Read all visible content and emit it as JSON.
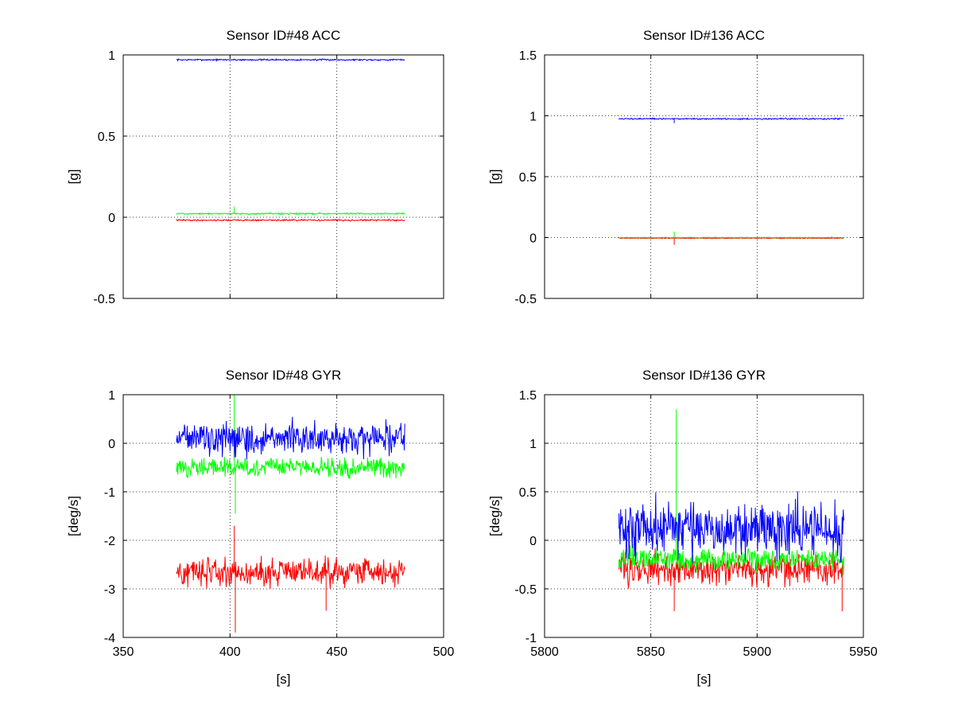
{
  "chart_data": [
    {
      "type": "line",
      "title": "Sensor ID#48 ACC",
      "xlabel": "",
      "ylabel": "[g]",
      "xlim": [
        350,
        500
      ],
      "ylim": [
        -0.5,
        1
      ],
      "xticks": [
        400,
        450
      ],
      "yticks": [
        -0.5,
        0,
        0.5,
        1
      ],
      "ytick_labels": [
        "-0.5",
        "0",
        "0.5",
        "1"
      ],
      "show_xtick_labels": false,
      "grid": true,
      "series": [
        {
          "color": "#0000ff",
          "x_range": [
            375,
            482
          ],
          "center": 0.97,
          "noise": 0.006,
          "spikes": []
        },
        {
          "color": "#00ff00",
          "x_range": [
            375,
            482
          ],
          "center": 0.022,
          "noise": 0.006,
          "spikes": [
            [
              402,
              0.065
            ]
          ]
        },
        {
          "color": "#ff0000",
          "x_range": [
            375,
            482
          ],
          "center": -0.018,
          "noise": 0.006,
          "spikes": []
        }
      ]
    },
    {
      "type": "line",
      "title": "Sensor ID#136 ACC",
      "xlabel": "",
      "ylabel": "[g]",
      "xlim": [
        5800,
        5950
      ],
      "ylim": [
        -0.5,
        1.5
      ],
      "xticks": [
        5850,
        5900
      ],
      "yticks": [
        -0.5,
        0,
        0.5,
        1,
        1.5
      ],
      "ytick_labels": [
        "-0.5",
        "0",
        "0.5",
        "1",
        "1.5"
      ],
      "show_xtick_labels": false,
      "grid": true,
      "series": [
        {
          "color": "#0000ff",
          "x_range": [
            5835,
            5941
          ],
          "center": 0.975,
          "noise": 0.007,
          "spikes": [
            [
              5861,
              0.94
            ]
          ]
        },
        {
          "color": "#ff0000",
          "x_range": [
            5835,
            5941
          ],
          "center": -0.005,
          "noise": 0.004,
          "spikes": [
            [
              5861,
              -0.06
            ]
          ]
        },
        {
          "color": "#00ff00",
          "x_range": [
            5835,
            5941
          ],
          "center": 0.0,
          "noise": 0.004,
          "spikes": [
            [
              5861,
              0.05
            ]
          ]
        }
      ]
    },
    {
      "type": "line",
      "title": "Sensor ID#48 GYR",
      "xlabel": "[s]",
      "ylabel": "[deg/s]",
      "xlim": [
        350,
        500
      ],
      "ylim": [
        -4,
        1
      ],
      "xticks": [
        350,
        400,
        450,
        500
      ],
      "yticks": [
        -4,
        -3,
        -2,
        -1,
        0,
        1
      ],
      "ytick_labels": [
        "-4",
        "-3",
        "-2",
        "-1",
        "0",
        "1"
      ],
      "show_xtick_labels": true,
      "grid": true,
      "series": [
        {
          "color": "#00ff00",
          "x_range": [
            375,
            482
          ],
          "center": -0.5,
          "noise": 0.24,
          "spikes": [
            [
              402,
              1.0
            ],
            [
              402.5,
              -1.45
            ]
          ]
        },
        {
          "color": "#0000ff",
          "x_range": [
            375,
            482
          ],
          "center": 0.1,
          "noise": 0.38,
          "spikes": []
        },
        {
          "color": "#ff0000",
          "x_range": [
            375,
            482
          ],
          "center": -2.65,
          "noise": 0.35,
          "spikes": [
            [
              402,
              -1.7
            ],
            [
              402.5,
              -3.9
            ],
            [
              445,
              -3.45
            ]
          ]
        }
      ]
    },
    {
      "type": "line",
      "title": "Sensor ID#136 GYR",
      "xlabel": "[s]",
      "ylabel": "[deg/s]",
      "xlim": [
        5800,
        5950
      ],
      "ylim": [
        -1,
        1.5
      ],
      "xticks": [
        5800,
        5850,
        5900,
        5950
      ],
      "yticks": [
        -1,
        -0.5,
        0,
        0.5,
        1,
        1.5
      ],
      "ytick_labels": [
        "-1",
        "-0.5",
        "0",
        "0.5",
        "1",
        "1.5"
      ],
      "show_xtick_labels": true,
      "grid": true,
      "series": [
        {
          "color": "#ff0000",
          "x_range": [
            5835,
            5941
          ],
          "center": -0.3,
          "noise": 0.2,
          "spikes": [
            [
              5861,
              -0.73
            ],
            [
              5940,
              -0.73
            ]
          ]
        },
        {
          "color": "#00ff00",
          "x_range": [
            5835,
            5941
          ],
          "center": -0.2,
          "noise": 0.15,
          "spikes": [
            [
              5862,
              1.35
            ]
          ]
        },
        {
          "color": "#0000ff",
          "x_range": [
            5835,
            5941
          ],
          "center": 0.12,
          "noise": 0.37,
          "spikes": []
        }
      ]
    }
  ]
}
